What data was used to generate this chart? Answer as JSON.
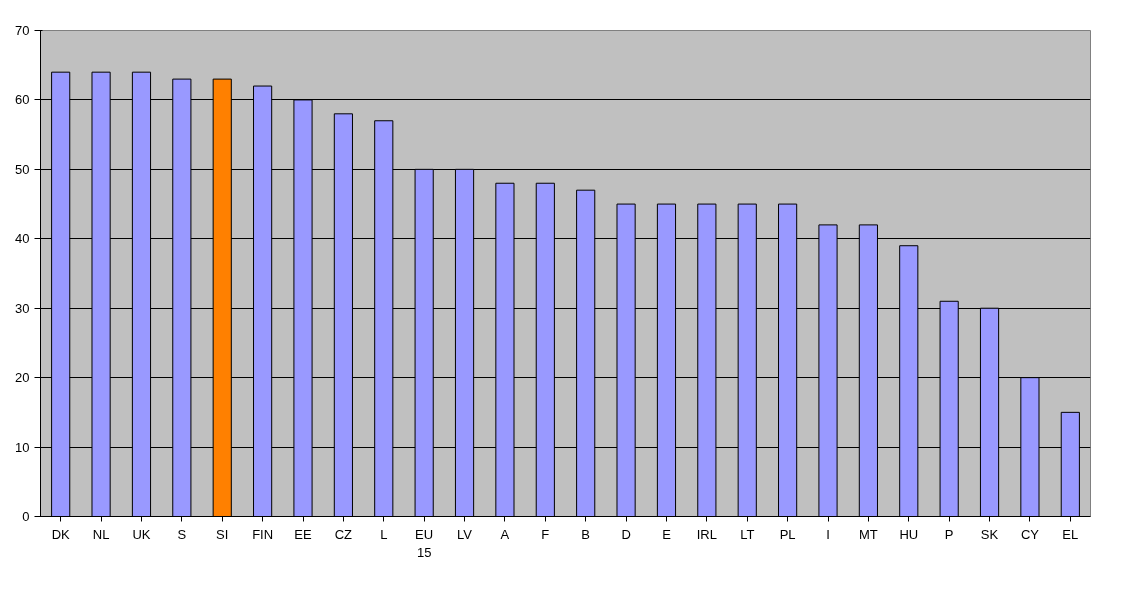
{
  "chart_data": {
    "type": "bar",
    "categories": [
      "DK",
      "NL",
      "UK",
      "S",
      "SI",
      "FIN",
      "EE",
      "CZ",
      "L",
      "EU 15",
      "LV",
      "A",
      "F",
      "B",
      "D",
      "E",
      "IRL",
      "LT",
      "PL",
      "I",
      "MT",
      "HU",
      "P",
      "SK",
      "CY",
      "EL"
    ],
    "values": [
      64,
      64,
      64,
      63,
      63,
      62,
      60,
      58,
      57,
      50,
      50,
      48,
      48,
      47,
      45,
      45,
      45,
      45,
      45,
      42,
      42,
      39,
      31,
      30,
      20,
      15
    ],
    "colors": [
      "#9999ff",
      "#9999ff",
      "#9999ff",
      "#9999ff",
      "#ff8000",
      "#9999ff",
      "#9999ff",
      "#9999ff",
      "#9999ff",
      "#9999ff",
      "#9999ff",
      "#9999ff",
      "#9999ff",
      "#9999ff",
      "#9999ff",
      "#9999ff",
      "#9999ff",
      "#9999ff",
      "#9999ff",
      "#9999ff",
      "#9999ff",
      "#9999ff",
      "#9999ff",
      "#9999ff",
      "#9999ff",
      "#9999ff"
    ],
    "ylim": [
      0,
      70
    ],
    "yticks": [
      0,
      10,
      20,
      30,
      40,
      50,
      60,
      70
    ],
    "grid": "y"
  }
}
